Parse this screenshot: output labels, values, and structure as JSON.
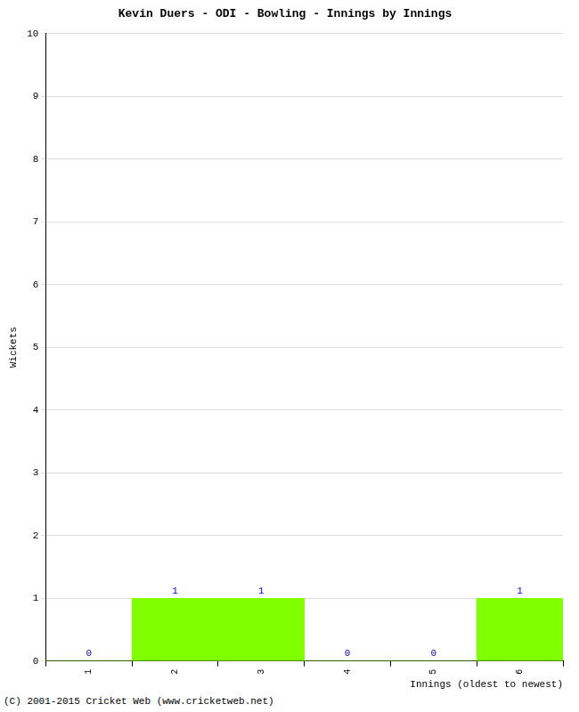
{
  "chart_data": {
    "type": "bar",
    "title": "Kevin Duers - ODI - Bowling - Innings by Innings",
    "x_label": "Innings (oldest to newest)",
    "y_label": "Wickets",
    "categories": [
      "1",
      "2",
      "3",
      "4",
      "5",
      "6"
    ],
    "values": [
      0,
      1,
      1,
      0,
      0,
      1
    ],
    "color": "#80ff00",
    "ylim": [
      0,
      10
    ],
    "yticks": [
      0,
      1,
      2,
      3,
      4,
      5,
      6,
      7,
      8,
      9,
      10
    ],
    "grid": true,
    "data_labels": true,
    "annotations": [
      "(C) 2001-2015 Cricket Web (www.cricketweb.net)"
    ]
  }
}
